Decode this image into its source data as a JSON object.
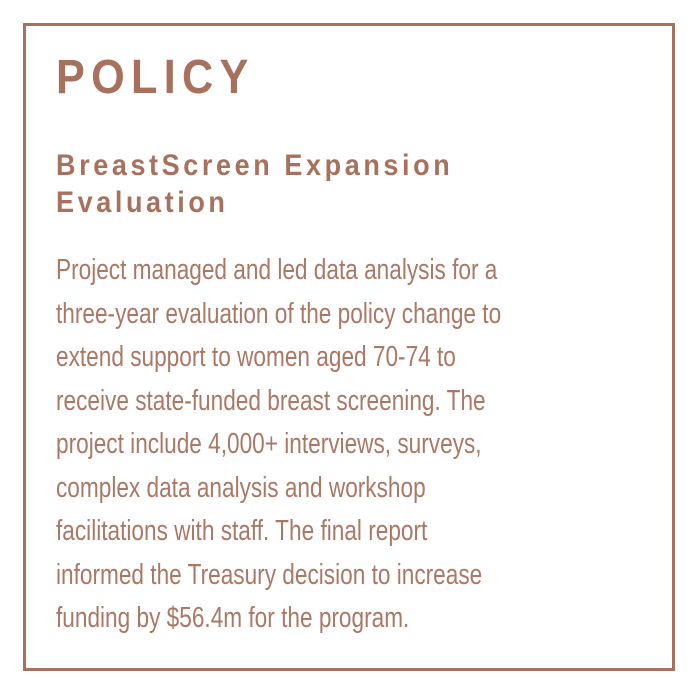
{
  "colors": {
    "accent": "#a8715d",
    "body_text": "#ab7866",
    "background": "#ffffff"
  },
  "card": {
    "category": "POLICY",
    "title_lines": [
      "BreastScreen Expansion",
      "Evaluation"
    ],
    "description_lines": [
      "Project managed and led data analysis for a",
      "three-year evaluation of the policy change to",
      "extend support to women aged 70-74 to",
      "receive state-funded breast screening. The",
      "project include 4,000+ interviews, surveys,",
      "complex data analysis and workshop",
      "facilitations with staff. The final report",
      "informed the Treasury decision to increase",
      "funding by $56.4m for the program."
    ]
  }
}
